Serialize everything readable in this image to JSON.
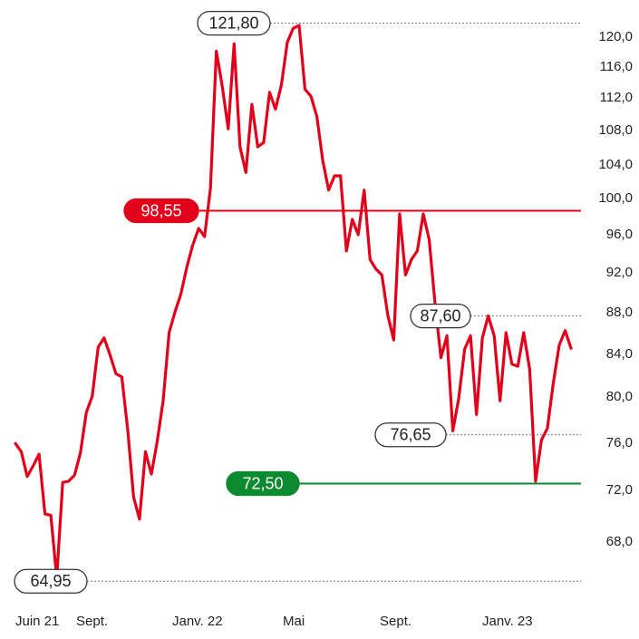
{
  "chart_data": {
    "type": "line",
    "ylim": [
      61.5,
      124
    ],
    "y_ticks": [
      "120,0",
      "116,0",
      "112,0",
      "108,0",
      "104,0",
      "100,0",
      "96,0",
      "92,0",
      "88,0",
      "84,0",
      "80,0",
      "76,0",
      "72,0",
      "68,0"
    ],
    "x_ticks": [
      "Juin 21",
      "Sept.",
      "Janv. 22",
      "Mai",
      "Sept.",
      "Janv. 23"
    ],
    "series": [
      {
        "color": "#e2001a",
        "values": [
          75.9,
          75.2,
          73.1,
          74.0,
          75.0,
          70.1,
          70.0,
          65.2,
          72.6,
          72.7,
          73.2,
          75.1,
          78.6,
          80.0,
          84.6,
          85.5,
          83.9,
          82.1,
          81.8,
          77.1,
          71.4,
          69.7,
          75.2,
          73.3,
          76.1,
          79.6,
          86.0,
          88.0,
          89.8,
          92.5,
          94.8,
          96.6,
          95.7,
          101.1,
          118.0,
          113.4,
          108.1,
          119.0,
          106.0,
          103.0,
          111.1,
          106.0,
          106.5,
          112.6,
          110.5,
          113.6,
          119.2,
          121.1,
          121.5,
          113.0,
          112.1,
          109.6,
          104.4,
          100.9,
          102.6,
          102.6,
          94.2,
          97.6,
          95.9,
          100.9,
          93.3,
          92.3,
          91.7,
          87.7,
          85.3,
          98.2,
          91.7,
          93.3,
          94.2,
          98.2,
          95.4,
          88.8,
          83.6,
          85.7,
          77.0,
          79.8,
          84.4,
          85.7,
          78.4,
          85.5,
          87.6,
          85.7,
          79.6,
          86.0,
          83.0,
          82.8,
          86.0,
          82.5,
          72.7,
          76.2,
          77.2,
          81.2,
          84.8,
          86.2,
          84.5
        ]
      }
    ],
    "annotations": [
      {
        "label": "121,80",
        "value": 121.8,
        "style": "outline"
      },
      {
        "label": "98,55",
        "value": 98.55,
        "style": "red"
      },
      {
        "label": "87,60",
        "value": 87.6,
        "style": "outline"
      },
      {
        "label": "76,65",
        "value": 76.65,
        "style": "outline"
      },
      {
        "label": "72,50",
        "value": 72.5,
        "style": "green"
      },
      {
        "label": "64,95",
        "value": 64.95,
        "style": "outline"
      }
    ],
    "colors": {
      "line": "#e2001a",
      "resistance": "#e2001a",
      "support": "#0b8a2e",
      "dotted": "#777777"
    },
    "grid": false
  }
}
